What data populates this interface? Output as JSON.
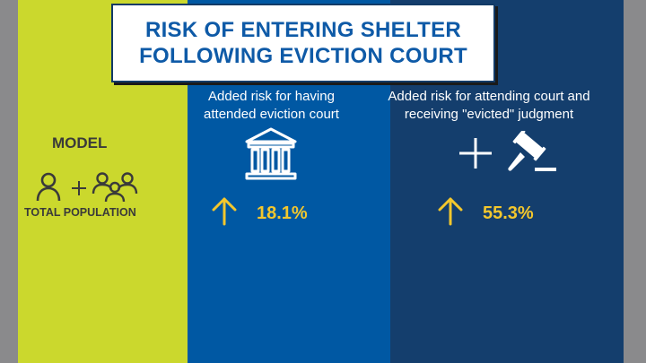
{
  "title": {
    "line1": "RISK OF ENTERING SHELTER",
    "line2": "FOLLOWING EVICTION COURT"
  },
  "model": {
    "label": "MODEL",
    "population_label": "TOTAL POPULATION",
    "icons": [
      "person-icon",
      "plus-icon",
      "group-icon"
    ]
  },
  "court": {
    "heading_line1": "Added risk for having",
    "heading_line2": "attended eviction court",
    "icon": "courthouse-icon",
    "value": "18.1%"
  },
  "judgment": {
    "heading_line1": "Added risk for attending court and",
    "heading_line2": "receiving \"evicted\" judgment",
    "icon": "gavel-icon",
    "value": "55.3%"
  },
  "colors": {
    "model_bg": "#cbd82d",
    "court_bg": "#0058a3",
    "judgment_bg": "#143e6d",
    "accent": "#f3c72d",
    "title_text": "#0e5aa7"
  }
}
